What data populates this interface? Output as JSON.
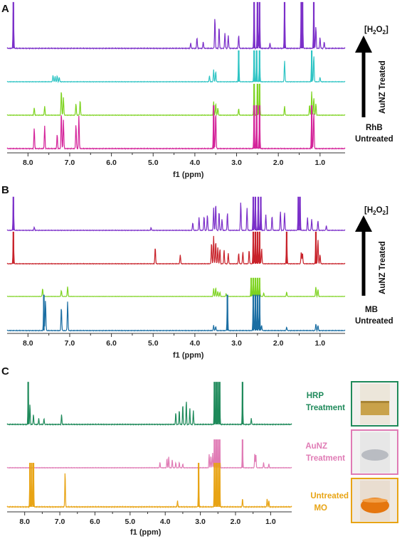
{
  "chart_data": [
    {
      "panel": "A",
      "type": "line",
      "xlabel": "f1 (ppm)",
      "xlim": [
        8.5,
        0.4
      ],
      "x_reversed": true,
      "xticks": [
        "8.0",
        "7.0",
        "6.0",
        "5.0",
        "4.0",
        "3.0",
        "2.0",
        "1.0"
      ],
      "tick_values": [
        8.0,
        7.5,
        7.0,
        6.5,
        6.0,
        5.5,
        5.0,
        4.5,
        4.0,
        3.5,
        3.0,
        2.5,
        2.0,
        1.5,
        1.0
      ],
      "arrow_top_label": "[H2O2]",
      "arrow_side_label": "AuNZ Treated",
      "bottom_label": [
        "RhB",
        "Untreated"
      ],
      "series": [
        {
          "color": "#7b2fc9",
          "peaks": [
            [
              8.35,
              1.0
            ],
            [
              3.95,
              0.25
            ],
            [
              3.52,
              0.7
            ],
            [
              3.42,
              0.5
            ],
            [
              3.28,
              0.35
            ],
            [
              3.2,
              0.3
            ],
            [
              2.58,
              1.0
            ],
            [
              2.5,
              1.0
            ],
            [
              2.45,
              1.0
            ],
            [
              1.85,
              1.0
            ],
            [
              1.45,
              1.0
            ],
            [
              1.42,
              1.0
            ],
            [
              1.15,
              1.0
            ],
            [
              1.1,
              0.5
            ],
            [
              4.1,
              0.12
            ],
            [
              3.8,
              0.15
            ],
            [
              2.95,
              0.3
            ],
            [
              2.2,
              0.12
            ],
            [
              1.0,
              0.25
            ],
            [
              0.9,
              0.15
            ]
          ]
        },
        {
          "color": "#2ec4c4",
          "peaks": [
            [
              7.4,
              0.22
            ],
            [
              7.35,
              0.18
            ],
            [
              7.3,
              0.2
            ],
            [
              7.25,
              0.15
            ],
            [
              3.55,
              0.4
            ],
            [
              3.5,
              0.35
            ],
            [
              2.95,
              1.0
            ],
            [
              2.58,
              1.0
            ],
            [
              2.52,
              1.0
            ],
            [
              2.45,
              1.0
            ],
            [
              1.85,
              0.7
            ],
            [
              1.2,
              1.0
            ],
            [
              1.15,
              0.9
            ],
            [
              3.65,
              0.2
            ],
            [
              1.0,
              0.15
            ]
          ]
        },
        {
          "color": "#7ed321",
          "peaks": [
            [
              7.85,
              0.25
            ],
            [
              7.6,
              0.3
            ],
            [
              7.2,
              0.85
            ],
            [
              7.15,
              0.6
            ],
            [
              6.85,
              0.4
            ],
            [
              6.75,
              0.5
            ],
            [
              3.55,
              0.45
            ],
            [
              3.5,
              0.4
            ],
            [
              3.45,
              0.25
            ],
            [
              2.95,
              0.22
            ],
            [
              2.58,
              1.0
            ],
            [
              2.5,
              1.0
            ],
            [
              2.45,
              1.0
            ],
            [
              1.85,
              0.3
            ],
            [
              1.25,
              0.35
            ],
            [
              1.2,
              0.8
            ],
            [
              1.15,
              0.6
            ],
            [
              1.1,
              0.4
            ]
          ]
        },
        {
          "color": "#d4249a",
          "peaks": [
            [
              7.85,
              0.5
            ],
            [
              7.6,
              0.55
            ],
            [
              7.3,
              0.35
            ],
            [
              7.2,
              0.9
            ],
            [
              7.15,
              0.7
            ],
            [
              6.85,
              0.6
            ],
            [
              6.78,
              0.8
            ],
            [
              3.55,
              1.0
            ],
            [
              3.5,
              0.9
            ],
            [
              2.58,
              1.0
            ],
            [
              2.52,
              1.0
            ],
            [
              2.45,
              1.0
            ],
            [
              1.2,
              1.0
            ],
            [
              1.15,
              0.9
            ]
          ]
        }
      ]
    },
    {
      "panel": "B",
      "type": "line",
      "xlabel": "f1 (ppm)",
      "xlim": [
        8.5,
        0.4
      ],
      "x_reversed": true,
      "xticks": [
        "8.0",
        "7.0",
        "6.0",
        "5.0",
        "4.0",
        "3.0",
        "2.0",
        "1.0"
      ],
      "tick_values": [
        8.0,
        7.5,
        7.0,
        6.5,
        6.0,
        5.5,
        5.0,
        4.5,
        4.0,
        3.5,
        3.0,
        2.5,
        2.0,
        1.5,
        1.0
      ],
      "arrow_top_label": "[H2O2]",
      "arrow_side_label": "AuNZ Treated",
      "bottom_label": [
        "MB",
        "Untreated"
      ],
      "series": [
        {
          "color": "#7b2fc9",
          "peaks": [
            [
              8.35,
              1.0
            ],
            [
              7.85,
              0.1
            ],
            [
              5.05,
              0.08
            ],
            [
              4.05,
              0.25
            ],
            [
              3.9,
              0.4
            ],
            [
              3.78,
              0.45
            ],
            [
              3.7,
              0.5
            ],
            [
              3.55,
              0.7
            ],
            [
              3.5,
              0.85
            ],
            [
              3.42,
              0.6
            ],
            [
              3.35,
              0.35
            ],
            [
              3.22,
              0.55
            ],
            [
              2.9,
              0.9
            ],
            [
              2.75,
              0.7
            ],
            [
              2.6,
              1.0
            ],
            [
              2.55,
              1.0
            ],
            [
              2.48,
              1.0
            ],
            [
              2.42,
              1.0
            ],
            [
              2.3,
              0.5
            ],
            [
              2.15,
              0.45
            ],
            [
              1.95,
              0.6
            ],
            [
              1.85,
              0.55
            ],
            [
              1.52,
              1.0
            ],
            [
              1.48,
              1.0
            ],
            [
              1.3,
              0.4
            ],
            [
              1.2,
              0.35
            ],
            [
              1.05,
              0.3
            ],
            [
              0.85,
              0.15
            ]
          ]
        },
        {
          "color": "#c8222a",
          "peaks": [
            [
              8.35,
              1.0
            ],
            [
              4.95,
              0.55
            ],
            [
              4.35,
              0.3
            ],
            [
              3.6,
              0.7
            ],
            [
              3.55,
              0.9
            ],
            [
              3.5,
              0.75
            ],
            [
              3.45,
              0.55
            ],
            [
              3.4,
              0.5
            ],
            [
              3.3,
              0.45
            ],
            [
              3.2,
              0.35
            ],
            [
              2.95,
              0.35
            ],
            [
              2.85,
              0.4
            ],
            [
              2.7,
              0.45
            ],
            [
              2.6,
              1.0
            ],
            [
              2.55,
              1.0
            ],
            [
              2.5,
              1.0
            ],
            [
              2.45,
              1.0
            ],
            [
              2.4,
              0.5
            ],
            [
              1.8,
              1.0
            ],
            [
              1.45,
              0.4
            ],
            [
              1.42,
              0.35
            ],
            [
              1.1,
              1.0
            ],
            [
              1.05,
              0.8
            ],
            [
              1.0,
              0.3
            ]
          ]
        },
        {
          "color": "#7ed321",
          "peaks": [
            [
              7.65,
              0.45
            ],
            [
              7.2,
              0.35
            ],
            [
              7.05,
              0.55
            ],
            [
              3.55,
              0.45
            ],
            [
              3.5,
              0.5
            ],
            [
              3.45,
              0.3
            ],
            [
              3.4,
              0.25
            ],
            [
              3.25,
              0.15
            ],
            [
              2.65,
              1.0
            ],
            [
              2.6,
              1.0
            ],
            [
              2.55,
              1.0
            ],
            [
              2.5,
              1.0
            ],
            [
              2.45,
              1.0
            ],
            [
              2.35,
              0.2
            ],
            [
              1.8,
              0.25
            ],
            [
              1.1,
              0.55
            ],
            [
              1.05,
              0.4
            ]
          ]
        },
        {
          "color": "#1b6ea3",
          "peaks": [
            [
              7.62,
              1.0
            ],
            [
              7.58,
              0.9
            ],
            [
              7.2,
              0.7
            ],
            [
              7.05,
              0.85
            ],
            [
              3.55,
              0.15
            ],
            [
              3.5,
              0.12
            ],
            [
              3.22,
              1.0
            ],
            [
              2.6,
              1.0
            ],
            [
              2.55,
              1.0
            ],
            [
              2.5,
              1.0
            ],
            [
              2.45,
              1.0
            ],
            [
              2.4,
              0.15
            ],
            [
              1.8,
              0.1
            ],
            [
              1.1,
              0.2
            ],
            [
              1.05,
              0.15
            ]
          ]
        }
      ]
    },
    {
      "panel": "C",
      "type": "line",
      "xlabel": "f1 (ppm)",
      "xlim": [
        8.5,
        0.4
      ],
      "x_reversed": true,
      "xticks": [
        "8.0",
        "7.0",
        "6.0",
        "5.0",
        "4.0",
        "3.0",
        "2.0",
        "1.0"
      ],
      "tick_values": [
        8.0,
        7.5,
        7.0,
        6.5,
        6.0,
        5.5,
        5.0,
        4.5,
        4.0,
        3.5,
        3.0,
        2.5,
        2.0,
        1.5,
        1.0
      ],
      "series": [
        {
          "color": "#1f8a5b",
          "peaks": [
            [
              7.9,
              1.0
            ],
            [
              7.85,
              0.5
            ],
            [
              7.75,
              0.25
            ],
            [
              7.6,
              0.15
            ],
            [
              7.45,
              0.15
            ],
            [
              6.95,
              0.25
            ],
            [
              3.7,
              0.3
            ],
            [
              3.6,
              0.35
            ],
            [
              3.5,
              0.5
            ],
            [
              3.4,
              0.6
            ],
            [
              3.3,
              0.4
            ],
            [
              3.2,
              0.35
            ],
            [
              2.6,
              1.0
            ],
            [
              2.55,
              1.0
            ],
            [
              2.5,
              1.0
            ],
            [
              2.45,
              1.0
            ],
            [
              1.8,
              1.0
            ],
            [
              1.55,
              0.15
            ]
          ]
        },
        {
          "color": "#e07bb5",
          "peaks": [
            [
              4.15,
              0.2
            ],
            [
              3.95,
              0.35
            ],
            [
              3.9,
              0.4
            ],
            [
              3.8,
              0.3
            ],
            [
              3.7,
              0.2
            ],
            [
              3.6,
              0.2
            ],
            [
              3.5,
              0.15
            ],
            [
              2.75,
              0.5
            ],
            [
              2.7,
              0.45
            ],
            [
              2.65,
              0.55
            ],
            [
              2.6,
              1.0
            ],
            [
              2.55,
              1.0
            ],
            [
              2.5,
              1.0
            ],
            [
              2.45,
              1.0
            ],
            [
              1.8,
              1.0
            ],
            [
              1.45,
              0.55
            ],
            [
              1.42,
              0.5
            ],
            [
              1.2,
              0.2
            ],
            [
              1.05,
              0.15
            ]
          ]
        },
        {
          "color": "#e8a415",
          "peaks": [
            [
              7.85,
              1.0
            ],
            [
              7.8,
              1.0
            ],
            [
              7.75,
              1.0
            ],
            [
              6.85,
              0.85
            ],
            [
              3.65,
              0.15
            ],
            [
              3.05,
              1.0
            ],
            [
              2.6,
              1.0
            ],
            [
              2.55,
              1.0
            ],
            [
              2.5,
              1.0
            ],
            [
              2.45,
              1.0
            ],
            [
              1.8,
              0.2
            ],
            [
              1.1,
              0.2
            ],
            [
              1.05,
              0.15
            ]
          ]
        }
      ],
      "legend": [
        {
          "label": [
            "HRP",
            "Treatment"
          ],
          "color": "#1f8a5b"
        },
        {
          "label": [
            "AuNZ",
            "Treatment"
          ],
          "color": "#e07bb5"
        },
        {
          "label": [
            "Untreated",
            "MO"
          ],
          "color": "#e8a415"
        }
      ]
    }
  ],
  "panel_labels": [
    "A",
    "B",
    "C"
  ]
}
